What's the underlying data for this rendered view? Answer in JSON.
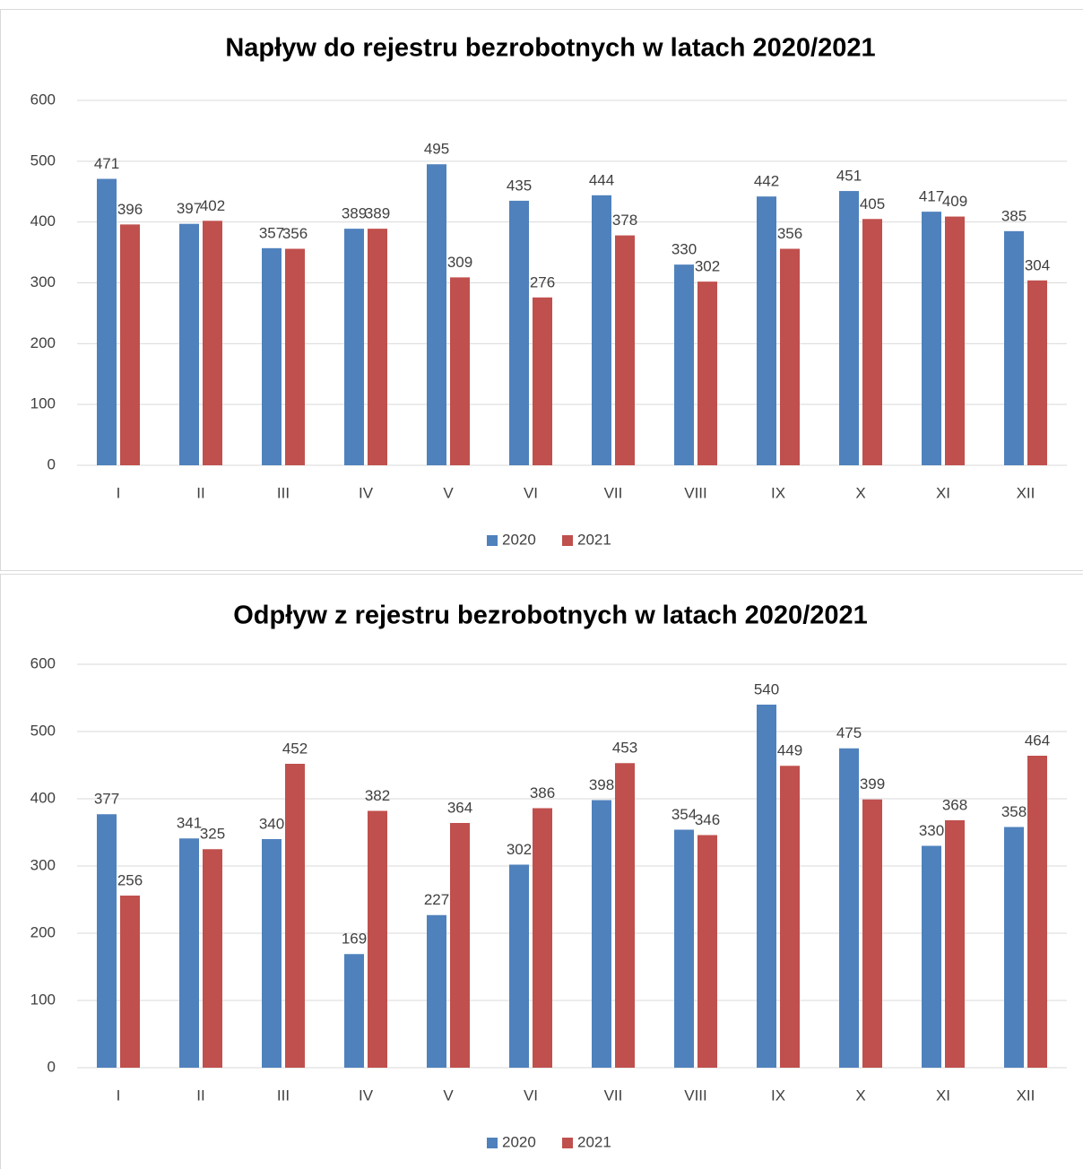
{
  "chart_data": [
    {
      "type": "bar",
      "title": "Napływ do rejestru bezrobotnych w latach 2020/2021",
      "categories": [
        "I",
        "II",
        "III",
        "IV",
        "V",
        "VI",
        "VII",
        "VIII",
        "IX",
        "X",
        "XI",
        "XII"
      ],
      "series": [
        {
          "name": "2020",
          "color": "#4f81bd",
          "values": [
            471,
            397,
            357,
            389,
            495,
            435,
            444,
            330,
            442,
            451,
            417,
            385
          ]
        },
        {
          "name": "2021",
          "color": "#c0504d",
          "values": [
            396,
            402,
            356,
            389,
            309,
            276,
            378,
            302,
            356,
            405,
            409,
            304
          ]
        }
      ],
      "ylim": [
        0,
        600
      ],
      "yticks": [
        0,
        100,
        200,
        300,
        400,
        500,
        600
      ],
      "grid": true,
      "legend": "bottom"
    },
    {
      "type": "bar",
      "title": "Odpływ z rejestru bezrobotnych w latach 2020/2021",
      "categories": [
        "I",
        "II",
        "III",
        "IV",
        "V",
        "VI",
        "VII",
        "VIII",
        "IX",
        "X",
        "XI",
        "XII"
      ],
      "series": [
        {
          "name": "2020",
          "color": "#4f81bd",
          "values": [
            377,
            341,
            340,
            169,
            227,
            302,
            398,
            354,
            540,
            475,
            330,
            358
          ]
        },
        {
          "name": "2021",
          "color": "#c0504d",
          "values": [
            256,
            325,
            452,
            382,
            364,
            386,
            453,
            346,
            449,
            399,
            368,
            464
          ]
        }
      ],
      "ylim": [
        0,
        600
      ],
      "yticks": [
        0,
        100,
        200,
        300,
        400,
        500,
        600
      ],
      "grid": true,
      "legend": "bottom"
    }
  ]
}
